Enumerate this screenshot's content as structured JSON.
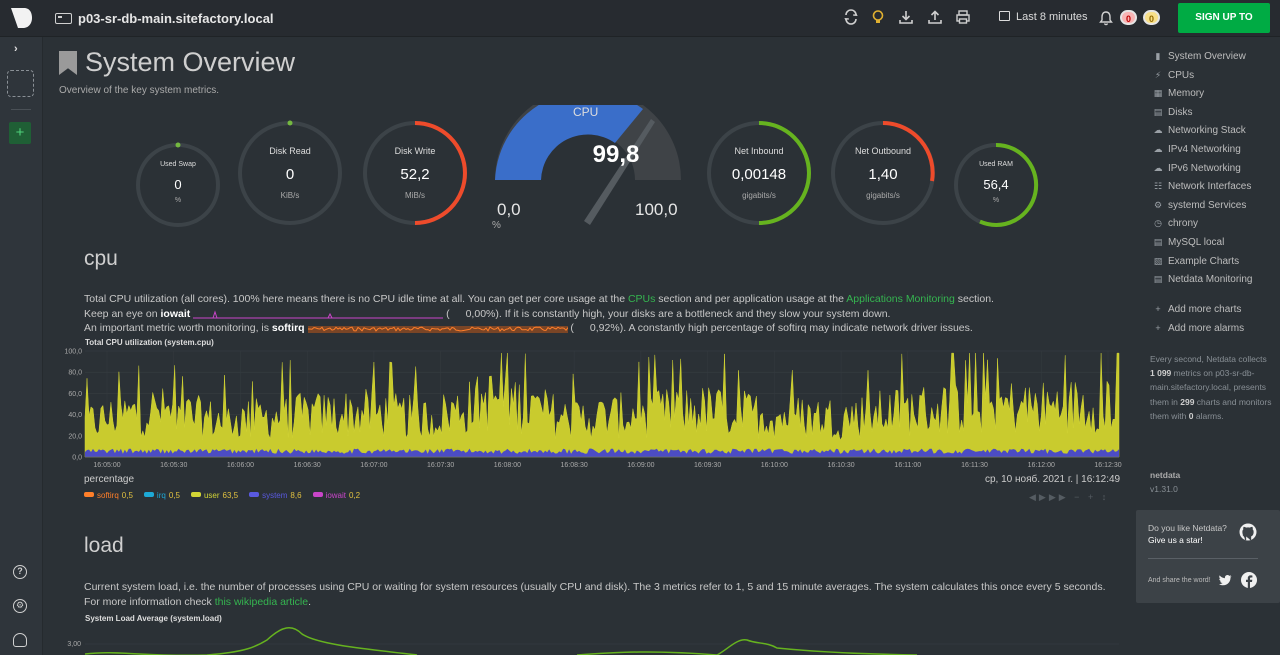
{
  "header": {
    "hostname": "p03-sr-db-main.sitefactory.local",
    "time_range": "Last 8 minutes",
    "alarms_critical": "0",
    "alarms_warning": "0",
    "signup_label": "SIGN UP TO CLOUD",
    "icons": [
      "sync-icon",
      "lightbulb-icon",
      "download-icon",
      "upload-icon",
      "print-icon",
      "calendar-icon",
      "bell-icon"
    ]
  },
  "page": {
    "title": "System Overview",
    "subtitle": "Overview of the key system metrics."
  },
  "gauges": {
    "used_swap": {
      "title": "Used Swap",
      "value": "0",
      "unit": "%",
      "fraction": 0.0
    },
    "disk_read": {
      "title": "Disk Read",
      "value": "0",
      "unit": "KiB/s",
      "fraction": 0.0
    },
    "disk_write": {
      "title": "Disk Write",
      "value": "52,2",
      "unit": "MiB/s",
      "fraction": 0.5
    },
    "cpu": {
      "title": "CPU",
      "value": "99,8",
      "min": "0,0",
      "max": "100,0",
      "unit": "%",
      "fraction": 0.998
    },
    "net_inbound": {
      "title": "Net Inbound",
      "value": "0,00148",
      "unit": "gigabits/s",
      "fraction": 0.5
    },
    "net_outbound": {
      "title": "Net Outbound",
      "value": "1,40",
      "unit": "gigabits/s",
      "fraction": 0.33
    },
    "used_ram": {
      "title": "Used RAM",
      "value": "56,4",
      "unit": "%",
      "fraction": 0.564
    }
  },
  "cpu_section": {
    "heading": "cpu",
    "p1_a": "Total CPU utilization (all cores). 100% here means there is no CPU idle time at all. You can get per core usage at the ",
    "p1_link1": "CPUs",
    "p1_b": " section and per application usage at the ",
    "p1_link2": "Applications Monitoring",
    "p1_c": " section.",
    "p2_a": "Keep an eye on ",
    "p2_b": "iowait",
    "p2_c": " (",
    "p2_val": "0,00%",
    "p2_d": "). If it is constantly high, your disks are a bottleneck and they slow your system down.",
    "p3_a": "An important metric worth monitoring, is ",
    "p3_b": "softirq",
    "p3_c": " (",
    "p3_val": "0,92%",
    "p3_d": "). A constantly high percentage of softirq may indicate network driver issues.",
    "chart_title": "Total CPU utilization (system.cpu)",
    "units": "percentage",
    "date": "ср, 10 нояб. 2021 г. | 16:12:49",
    "legend": [
      {
        "name": "softirq",
        "value": "0,5",
        "color": "#ff7f2a"
      },
      {
        "name": "irq",
        "value": "0,5",
        "color": "#1da9d6"
      },
      {
        "name": "user",
        "value": "63,5",
        "color": "#d3d536"
      },
      {
        "name": "system",
        "value": "8,6",
        "color": "#5959e0"
      },
      {
        "name": "iowait",
        "value": "0,2",
        "color": "#c945c9"
      }
    ]
  },
  "load_section": {
    "heading": "load",
    "p1_a": "Current system load, i.e. the number of processes using CPU or waiting for system resources (usually CPU and disk). The 3 metrics refer to 1, 5 and 15 minute averages. The system calculates this once every 5 seconds. For more information check ",
    "p1_link": "this wikipedia article",
    "p1_b": ".",
    "chart_title": "System Load Average (system.load)",
    "y_tick": "3,00"
  },
  "chart_data": [
    {
      "type": "area",
      "title": "Total CPU utilization (system.cpu)",
      "ylabel": "percentage",
      "ylim": [
        0,
        100
      ],
      "yticks": [
        "100,0",
        "80,0",
        "60,0",
        "40,0",
        "20,0",
        "0,0"
      ],
      "x": [
        "16:05:00",
        "16:05:30",
        "16:06:00",
        "16:06:30",
        "16:07:00",
        "16:07:30",
        "16:08:00",
        "16:08:30",
        "16:09:00",
        "16:09:30",
        "16:10:00",
        "16:10:30",
        "16:11:00",
        "16:11:30",
        "16:12:00",
        "16:12:30"
      ],
      "series": [
        {
          "name": "system",
          "values": [
            8,
            9,
            7,
            8,
            9,
            8,
            10,
            8,
            9,
            8,
            9,
            8,
            9,
            8,
            9,
            9
          ]
        },
        {
          "name": "user",
          "values": [
            40,
            55,
            42,
            48,
            52,
            45,
            70,
            44,
            50,
            55,
            48,
            46,
            55,
            60,
            58,
            65
          ]
        }
      ]
    },
    {
      "type": "line",
      "title": "System Load Average (system.load)",
      "yticks": [
        "3,00"
      ]
    }
  ],
  "nav": {
    "items": [
      {
        "label": "System Overview",
        "icon": "bookmark-icon"
      },
      {
        "label": "CPUs",
        "icon": "bolt-icon"
      },
      {
        "label": "Memory",
        "icon": "memory-icon"
      },
      {
        "label": "Disks",
        "icon": "disk-icon"
      },
      {
        "label": "Networking Stack",
        "icon": "cloud-icon"
      },
      {
        "label": "IPv4 Networking",
        "icon": "cloud-icon"
      },
      {
        "label": "IPv6 Networking",
        "icon": "cloud-icon"
      },
      {
        "label": "Network Interfaces",
        "icon": "sitemap-icon"
      },
      {
        "label": "systemd Services",
        "icon": "cogs-icon"
      },
      {
        "label": "chrony",
        "icon": "clock-icon"
      },
      {
        "label": "MySQL local",
        "icon": "database-icon"
      },
      {
        "label": "Example Charts",
        "icon": "folder-icon"
      },
      {
        "label": "Netdata Monitoring",
        "icon": "chart-icon"
      }
    ],
    "add_charts": "Add more charts",
    "add_alarms": "Add more alarms",
    "info_a": "Every second, Netdata collects ",
    "info_metrics": "1 099",
    "info_b": " metrics on p03-sr-db-main.sitefactory.local, presents them in ",
    "info_charts": "299",
    "info_c": " charts and monitors them with ",
    "info_alarms": "0",
    "info_d": " alarms.",
    "netdata_label": "netdata",
    "version": "v1.31.0",
    "star_question": "Do you like Netdata?",
    "star_cta": "Give us a star!",
    "share_text": "And share the word!"
  }
}
